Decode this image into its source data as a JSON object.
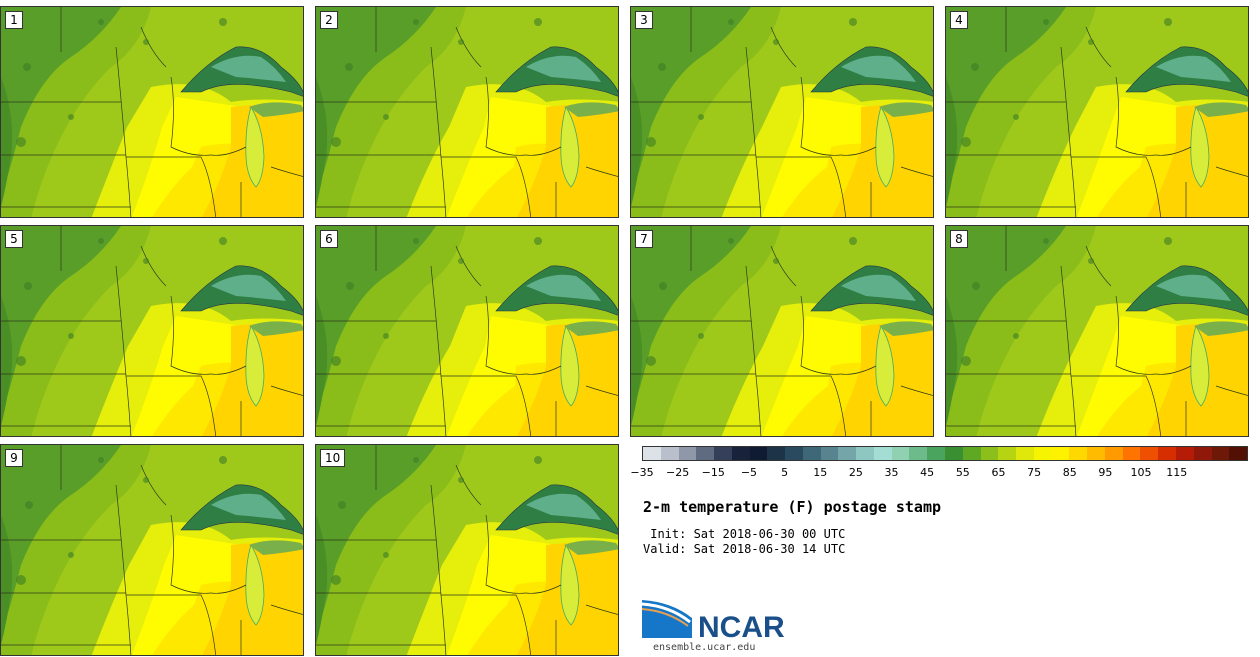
{
  "product": {
    "title": "2-m temperature (F) postage stamp",
    "init_line": " Init: Sat 2018-06-30 00 UTC",
    "valid_line": "Valid: Sat 2018-06-30 14 UTC"
  },
  "stamps": [
    {
      "label": "1"
    },
    {
      "label": "2"
    },
    {
      "label": "3"
    },
    {
      "label": "4"
    },
    {
      "label": "5"
    },
    {
      "label": "6"
    },
    {
      "label": "7"
    },
    {
      "label": "8"
    },
    {
      "label": "9"
    },
    {
      "label": "10"
    }
  ],
  "colorbar": {
    "ticks": [
      "−35",
      "−25",
      "−15",
      "−5",
      "5",
      "15",
      "25",
      "35",
      "45",
      "55",
      "65",
      "75",
      "85",
      "95",
      "105",
      "115"
    ],
    "colors": [
      "#dde2e8",
      "#b9c0cb",
      "#8e98a8",
      "#5f6b80",
      "#34405a",
      "#18223a",
      "#0e1b33",
      "#1d3347",
      "#2a4b5f",
      "#3e6878",
      "#58848f",
      "#74a5a8",
      "#8ec7c2",
      "#a3ddd3",
      "#8fd1b1",
      "#6dbb8a",
      "#4aa45e",
      "#3a8f33",
      "#5fa823",
      "#8cbf1b",
      "#b6d411",
      "#dfe80a",
      "#f6f400",
      "#fff200",
      "#ffd800",
      "#ffbb00",
      "#ff9a00",
      "#ff7300",
      "#ef4f00",
      "#d62e00",
      "#b41c07",
      "#8f180b",
      "#6e1808",
      "#521004"
    ]
  },
  "logo": {
    "name": "NCAR",
    "url": "ensemble.ucar.edu"
  },
  "colors": {
    "land_far_north": "#5a9e2a",
    "land_mid": "#9fc91a",
    "land_warm": "#e6ee0c",
    "land_yellow": "#fffb00",
    "land_hot": "#ffd400",
    "lake_dark": "#2f7f45",
    "lake_light": "#5fb08a"
  }
}
